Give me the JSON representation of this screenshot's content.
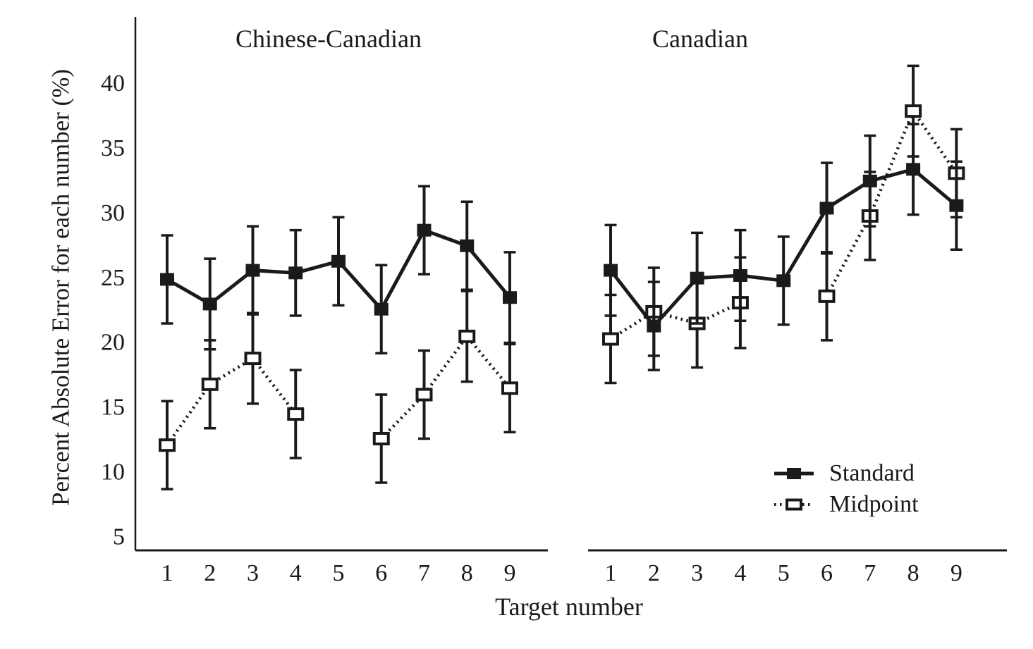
{
  "figure": {
    "y_axis_label": "Percent Absolute Error for each number (%)",
    "x_axis_label": "Target number",
    "y_ticks": [
      5,
      10,
      15,
      20,
      25,
      30,
      35,
      40
    ],
    "ink_color": "#1a1a1a",
    "background_color": "#ffffff"
  },
  "legend": {
    "items": [
      {
        "label": "Standard",
        "marker": "filled-square-icon",
        "line": "solid"
      },
      {
        "label": "Midpoint",
        "marker": "open-square-icon",
        "line": "dotted"
      }
    ],
    "position": "inside-right-panel-lower-right"
  },
  "chart_data": [
    {
      "type": "line",
      "panel": "left",
      "title": "Chinese-Canadian",
      "x": [
        1,
        2,
        3,
        4,
        5,
        6,
        7,
        8,
        9
      ],
      "xlabel": "Target number",
      "ylabel": "Percent Absolute Error for each number (%)",
      "ylim": [
        5,
        45
      ],
      "grid": false,
      "error_bars": true,
      "series": [
        {
          "name": "Standard",
          "marker": "filled-square",
          "line": "solid",
          "values": [
            24.8,
            22.9,
            25.5,
            25.3,
            26.2,
            22.5,
            28.6,
            27.4,
            23.4
          ],
          "err": [
            3.4,
            3.5,
            3.4,
            3.3,
            3.4,
            3.4,
            3.4,
            3.4,
            3.5
          ]
        },
        {
          "name": "Midpoint",
          "marker": "open-square",
          "line": "dotted",
          "values": [
            12.0,
            16.7,
            18.7,
            14.4,
            null,
            12.5,
            15.9,
            20.4,
            16.4
          ],
          "err": [
            3.4,
            3.4,
            3.5,
            3.4,
            null,
            3.4,
            3.4,
            3.5,
            3.4
          ]
        }
      ]
    },
    {
      "type": "line",
      "panel": "right",
      "title": "Canadian",
      "x": [
        1,
        2,
        3,
        4,
        5,
        6,
        7,
        8,
        9
      ],
      "xlabel": "Target number",
      "ylim": [
        5,
        45
      ],
      "grid": false,
      "error_bars": true,
      "series": [
        {
          "name": "Standard",
          "marker": "filled-square",
          "line": "solid",
          "values": [
            25.5,
            21.2,
            24.9,
            25.1,
            24.7,
            30.3,
            32.4,
            33.3,
            30.5
          ],
          "err": [
            3.5,
            3.4,
            3.5,
            3.5,
            3.4,
            3.5,
            3.5,
            3.5,
            3.4
          ]
        },
        {
          "name": "Midpoint",
          "marker": "open-square",
          "line": "dotted",
          "values": [
            20.2,
            22.3,
            21.4,
            23.0,
            null,
            23.5,
            29.7,
            37.8,
            33.0
          ],
          "err": [
            3.4,
            3.4,
            3.4,
            3.5,
            null,
            3.4,
            3.4,
            3.5,
            3.4
          ]
        }
      ]
    }
  ]
}
